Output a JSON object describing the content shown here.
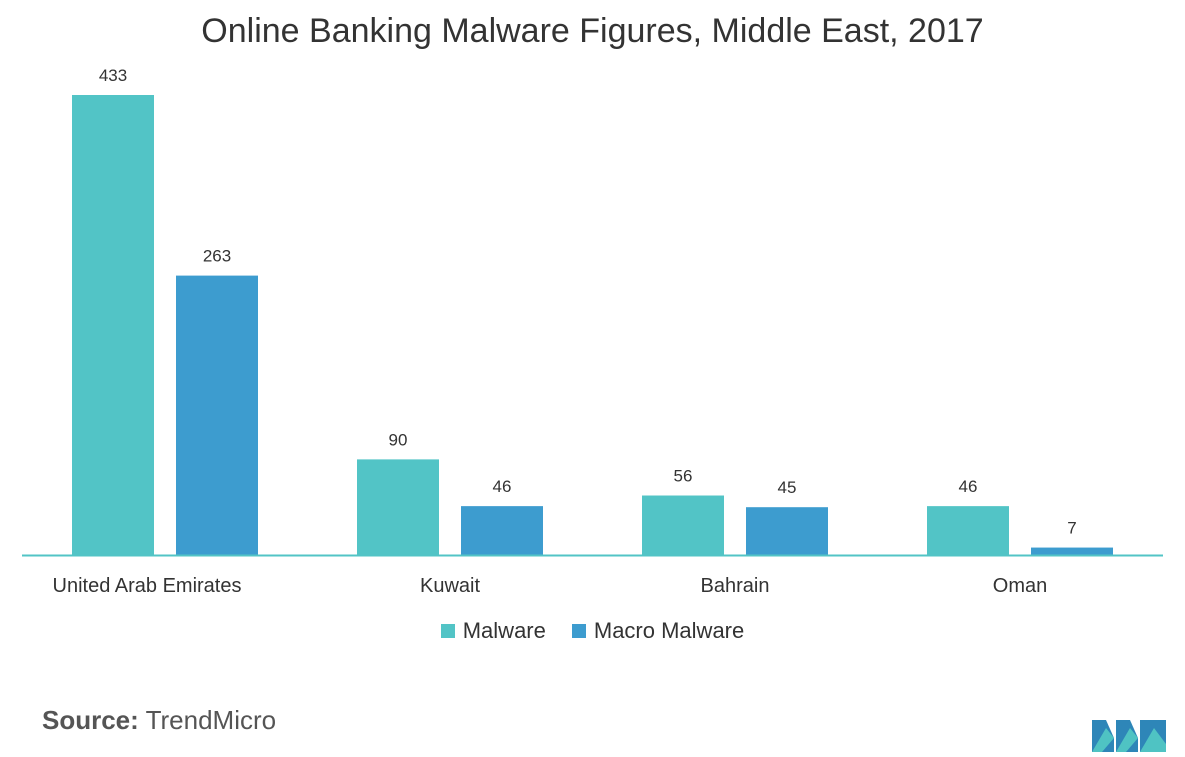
{
  "chart_data": {
    "type": "bar",
    "title": "Online Banking Malware Figures, Middle East, 2017",
    "categories": [
      "United Arab Emirates",
      "Kuwait",
      "Bahrain",
      "Oman"
    ],
    "series": [
      {
        "name": "Malware",
        "values": [
          433,
          90,
          56,
          46
        ],
        "color": "#52c4c6"
      },
      {
        "name": "Macro Malware",
        "values": [
          263,
          46,
          45,
          7
        ],
        "color": "#3d9ccf"
      }
    ],
    "ylim": [
      0,
      433
    ],
    "grid": false,
    "legend_position": "bottom-center",
    "data_labels": true
  },
  "source": {
    "label": "Source:",
    "text": "TrendMicro"
  },
  "logo": {
    "icon": "mordor-intelligence-logo-icon",
    "colors": [
      "#2e86b8",
      "#4fc3c3"
    ]
  }
}
